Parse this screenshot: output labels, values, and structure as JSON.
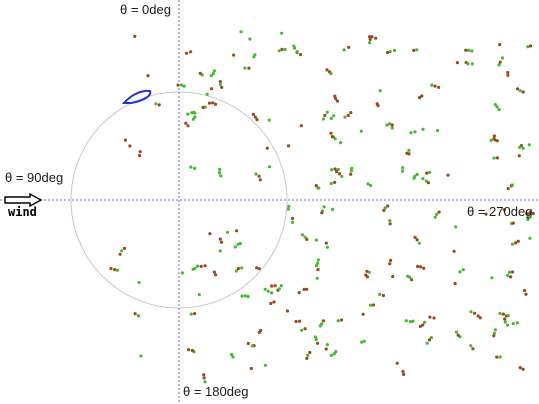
{
  "labels": {
    "theta_0": "θ = 0deg",
    "theta_90": "θ = 90deg",
    "theta_180": "θ = 180deg",
    "theta_270": "θ = 270deg",
    "wind": "wind"
  },
  "colors": {
    "axis": "#7070c8",
    "circle": "#c8c8c8",
    "wing": "#2233cc",
    "particle_green": "#44bb33",
    "particle_brown": "#9a4a1c",
    "arrow": "#000000"
  },
  "icons": {
    "wind_arrow": "right-arrow-outline-icon"
  }
}
